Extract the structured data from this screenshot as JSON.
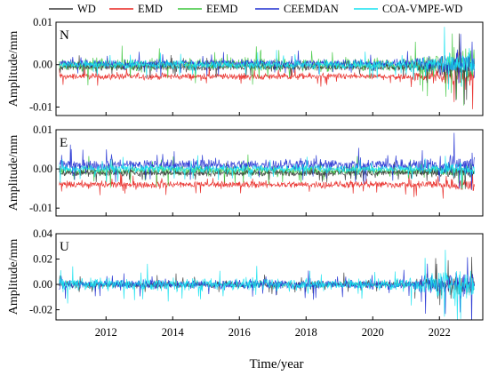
{
  "chart_data": {
    "type": "line",
    "legend": {
      "placement": "top",
      "entries": [
        {
          "name": "WD",
          "color": "#3a3a3a"
        },
        {
          "name": "EMD",
          "color": "#e8231f"
        },
        {
          "name": "EEMD",
          "color": "#3cc63c"
        },
        {
          "name": "CEEMDAN",
          "color": "#1f2fd1"
        },
        {
          "name": "COA-VMPE-WD",
          "color": "#14e2f0"
        }
      ]
    },
    "xlabel": "Time/year",
    "x_range": [
      2010.5,
      2023.3
    ],
    "x_ticks": [
      "2012",
      "2014",
      "2016",
      "2018",
      "2020",
      "2022"
    ],
    "grid": false,
    "panels": [
      {
        "letter": "N",
        "ylabel": "Amplitude/mm",
        "ylim": [
          -0.012,
          0.01
        ],
        "y_ticks": [
          "0.01",
          "0.00",
          "-0.01"
        ],
        "y_tick_values": [
          0.01,
          0.0,
          -0.01
        ],
        "series": [
          {
            "name": "EMD",
            "offset": -0.0028,
            "amplitude": 0.0011,
            "late_amplitude": 0.0035
          },
          {
            "name": "EEMD",
            "offset": 0.0,
            "amplitude": 0.0022,
            "late_amplitude": 0.0055
          },
          {
            "name": "WD",
            "offset": -0.0006,
            "amplitude": 0.0012,
            "late_amplitude": 0.004
          },
          {
            "name": "CEEMDAN",
            "offset": 0.0003,
            "amplitude": 0.0013,
            "late_amplitude": 0.0045
          },
          {
            "name": "COA-VMPE-WD",
            "offset": 0.0,
            "amplitude": 0.0016,
            "late_amplitude": 0.0045
          }
        ]
      },
      {
        "letter": "E",
        "ylabel": "Amplitude/mm",
        "ylim": [
          -0.012,
          0.01
        ],
        "y_ticks": [
          "0.01",
          "0.00",
          "-0.01"
        ],
        "y_tick_values": [
          0.01,
          0.0,
          -0.01
        ],
        "series": [
          {
            "name": "EMD",
            "offset": -0.004,
            "amplitude": 0.0013,
            "late_amplitude": 0.0022
          },
          {
            "name": "EEMD",
            "offset": -0.0005,
            "amplitude": 0.0018,
            "late_amplitude": 0.003
          },
          {
            "name": "WD",
            "offset": -0.001,
            "amplitude": 0.0012,
            "late_amplitude": 0.002
          },
          {
            "name": "CEEMDAN",
            "offset": 0.001,
            "amplitude": 0.0022,
            "late_amplitude": 0.004
          },
          {
            "name": "COA-VMPE-WD",
            "offset": 0.0,
            "amplitude": 0.0015,
            "late_amplitude": 0.0025
          }
        ]
      },
      {
        "letter": "U",
        "ylabel": "Amplitude/mm",
        "ylim": [
          -0.028,
          0.04
        ],
        "y_ticks": [
          "0.04",
          "0.02",
          "0.00",
          "-0.02"
        ],
        "y_tick_values": [
          0.04,
          0.02,
          0.0,
          -0.02
        ],
        "series": [
          {
            "name": "WD",
            "offset": 0.0,
            "amplitude": 0.004,
            "late_amplitude": 0.012
          },
          {
            "name": "CEEMDAN",
            "offset": 0.0,
            "amplitude": 0.0055,
            "late_amplitude": 0.016
          },
          {
            "name": "COA-VMPE-WD",
            "offset": 0.0,
            "amplitude": 0.007,
            "late_amplitude": 0.02
          }
        ]
      }
    ]
  }
}
